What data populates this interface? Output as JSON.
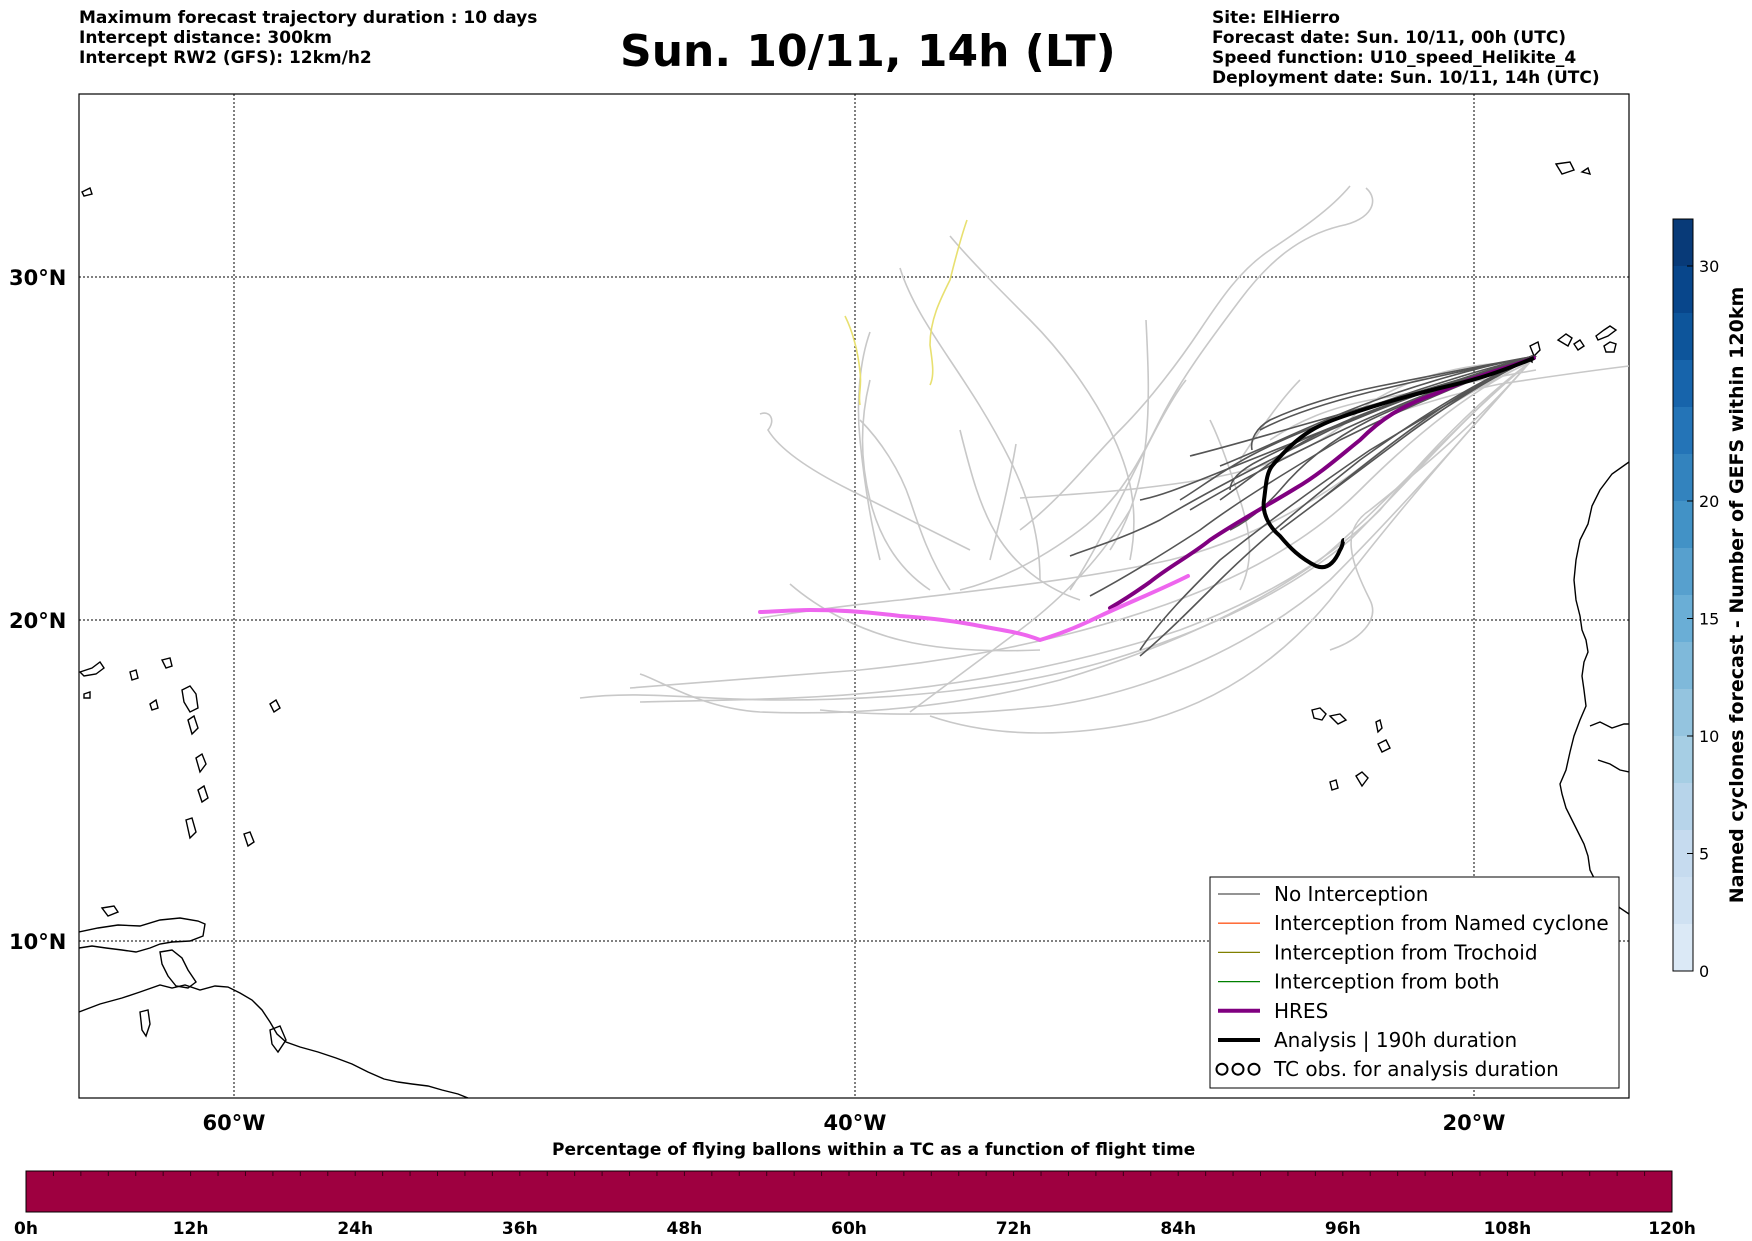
{
  "header": {
    "left_lines": [
      "Maximum forecast trajectory duration : 10 days",
      "Intercept distance: 300km",
      "Intercept RW2 (GFS):  12km/h2"
    ],
    "title": "Sun. 10/11, 14h (LT)",
    "right_lines": [
      "Site: ElHierro",
      "Forecast date: Sun. 10/11, 00h (UTC)",
      "Speed function: U10_speed_Helikite_4",
      "Deployment date: Sun. 10/11, 14h (UTC)"
    ]
  },
  "map": {
    "lat_labels": [
      "30°N",
      "20°N",
      "10°N"
    ],
    "lon_labels": [
      "60°W",
      "40°W",
      "20°W"
    ],
    "colors": {
      "no_interception": "#555555",
      "named_cyclone": "#ff5a1f",
      "trochoid": "#808000",
      "both": "#008000",
      "hres": "#800080",
      "hres_light": "#ee66ee",
      "analysis": "#000000",
      "ensemble_light": "#c8c8c8",
      "yellow_track": "#e8e070"
    }
  },
  "legend": {
    "items": [
      {
        "label": "No Interception",
        "kind": "thin",
        "color": "#555555"
      },
      {
        "label": "Interception from Named cyclone",
        "kind": "thin",
        "color": "#ff5a1f"
      },
      {
        "label": "Interception from Trochoid",
        "kind": "thin",
        "color": "#808000"
      },
      {
        "label": "Interception from both",
        "kind": "thin",
        "color": "#008000"
      },
      {
        "label": "HRES",
        "kind": "thick",
        "color": "#800080"
      },
      {
        "label": "Analysis | 190h duration",
        "kind": "thick",
        "color": "#000000"
      },
      {
        "label": "TC obs. for analysis duration",
        "kind": "symbol",
        "color": "#000000"
      }
    ]
  },
  "colorbar": {
    "label": "Named cyclones forecast - Number of GEFS within 120km",
    "ticks": [
      "0",
      "5",
      "10",
      "15",
      "20",
      "30"
    ],
    "bins": [
      {
        "value": 0,
        "color": "#dbe9f6"
      },
      {
        "value": 2,
        "color": "#cfe1f2"
      },
      {
        "value": 4,
        "color": "#c6dbef"
      },
      {
        "value": 6,
        "color": "#b7d4ea"
      },
      {
        "value": 8,
        "color": "#a6cee4"
      },
      {
        "value": 10,
        "color": "#94c4df"
      },
      {
        "value": 12,
        "color": "#7fb9da"
      },
      {
        "value": 14,
        "color": "#6aaed6"
      },
      {
        "value": 16,
        "color": "#57a0ce"
      },
      {
        "value": 18,
        "color": "#4292c6"
      },
      {
        "value": 20,
        "color": "#3383be"
      },
      {
        "value": 22,
        "color": "#2474b7"
      },
      {
        "value": 24,
        "color": "#1764ab"
      },
      {
        "value": 26,
        "color": "#0d559b"
      },
      {
        "value": 28,
        "color": "#08468b"
      },
      {
        "value": 30,
        "color": "#083a78"
      },
      {
        "value": 32,
        "color": "#08306b"
      }
    ]
  },
  "timebar": {
    "title": "Percentage of flying ballons within a TC as a function of flight time",
    "ticks": [
      "0h",
      "12h",
      "24h",
      "36h",
      "48h",
      "60h",
      "72h",
      "84h",
      "96h",
      "108h",
      "120h"
    ],
    "fill_color": "#9e0040"
  }
}
